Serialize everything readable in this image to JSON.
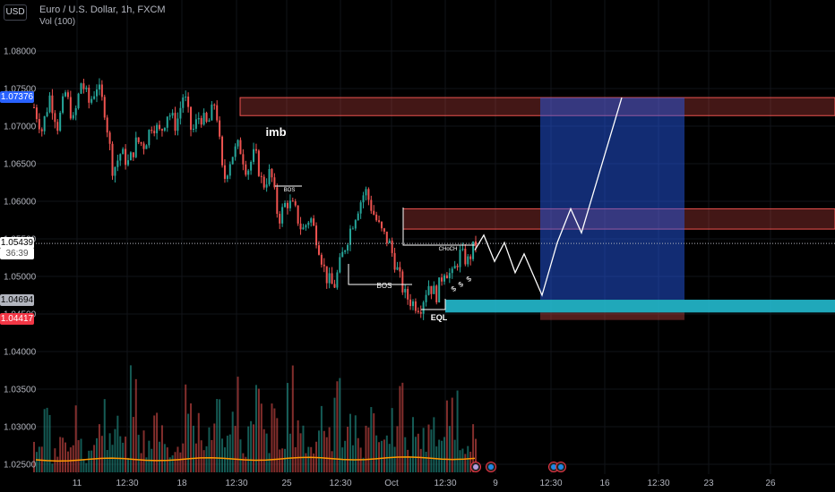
{
  "header": {
    "currency_label": "USD",
    "symbol_line": "Euro / U.S. Dollar, 1h, FXCM",
    "indicator_line": "Vol (100)"
  },
  "price_tags": {
    "top_zone": "1.07376",
    "current_price": "1.05439",
    "countdown": "36:39",
    "lower_zone": "1.04694",
    "stop_level": "1.04417"
  },
  "colors": {
    "background": "#000000",
    "up_candle": "#26a69a",
    "down_candle": "#ef5350",
    "supply_zone": "#ef5350",
    "target_box": "#2962ff",
    "demand_zone": "#26c6da",
    "projection": "#ffffff",
    "volume_ma": "#ff9800"
  },
  "chart_data": {
    "type": "candlestick",
    "y_ticks": [
      "1.08000",
      "1.07500",
      "1.07000",
      "1.06500",
      "1.06000",
      "1.05500",
      "1.05000",
      "1.04500",
      "1.04000",
      "1.03500",
      "1.03000",
      "1.02500"
    ],
    "y_range": [
      1.0235,
      1.0835
    ],
    "x_ticks": [
      "11",
      "12:30",
      "18",
      "12:30",
      "25",
      "12:30",
      "Oct",
      "12:30",
      "9",
      "12:30",
      "16",
      "12:30",
      "23",
      "26"
    ],
    "price_path": [
      1.0725,
      1.0695,
      1.074,
      1.07,
      1.0745,
      1.0705,
      1.076,
      1.073,
      1.0755,
      1.072,
      1.064,
      1.0665,
      1.065,
      1.068,
      1.0675,
      1.0705,
      1.069,
      1.072,
      1.07,
      1.0745,
      1.069,
      1.0715,
      1.07,
      1.0735,
      1.0625,
      1.066,
      1.0675,
      1.064,
      1.0665,
      1.062,
      1.064,
      1.0575,
      1.06,
      1.059,
      1.056,
      1.058,
      1.0545,
      1.05,
      1.0485,
      1.0525,
      1.056,
      1.059,
      1.0615,
      1.0585,
      1.056,
      1.0545,
      1.051,
      1.0475,
      1.0465,
      1.046,
      1.049,
      1.0475,
      1.051,
      1.05,
      1.053,
      1.052,
      1.0545
    ],
    "volume_path": [
      3,
      6,
      2,
      5,
      4,
      7,
      2,
      3,
      8,
      4,
      5,
      3,
      9,
      4,
      3,
      6,
      5,
      2,
      4,
      10,
      5,
      3,
      6,
      7,
      4,
      11,
      3,
      5,
      8,
      4,
      6,
      3,
      9,
      5,
      4,
      3,
      7,
      5,
      12,
      4,
      6,
      3,
      8,
      5,
      4,
      6,
      9,
      3,
      5,
      4,
      7,
      3,
      6,
      8,
      4,
      5,
      3
    ],
    "annotations": {
      "imb": "imb",
      "bos_small": "BOS",
      "bos": "BOS",
      "choch": "CHoCH",
      "eql": "EQL",
      "liquidity_marks": [
        "$",
        "$",
        "$"
      ]
    },
    "zones": {
      "top_supply": [
        1.0714,
        1.0738
      ],
      "mid_supply": [
        1.0563,
        1.059
      ],
      "target_box": [
        1.0469,
        1.0738
      ],
      "demand": [
        1.0452,
        1.0469
      ],
      "stop_box": [
        1.0442,
        1.0452
      ]
    },
    "projection_path": [
      1.0535,
      1.0555,
      1.052,
      1.0545,
      1.0505,
      1.053,
      1.0475,
      1.0545,
      1.059,
      1.0558,
      1.0738
    ]
  }
}
